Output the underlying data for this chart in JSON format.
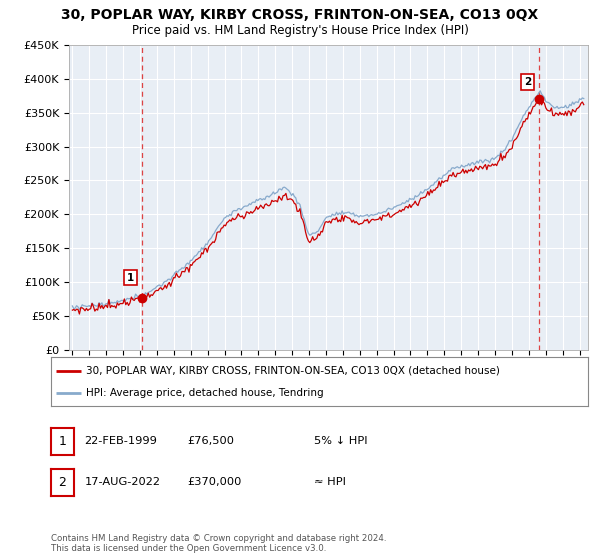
{
  "title": "30, POPLAR WAY, KIRBY CROSS, FRINTON-ON-SEA, CO13 0QX",
  "subtitle": "Price paid vs. HM Land Registry's House Price Index (HPI)",
  "ylabel_ticks": [
    "£0",
    "£50K",
    "£100K",
    "£150K",
    "£200K",
    "£250K",
    "£300K",
    "£350K",
    "£400K",
    "£450K"
  ],
  "ylim": [
    0,
    450000
  ],
  "xlim_start": 1995.0,
  "xlim_end": 2025.5,
  "legend_line1": "30, POPLAR WAY, KIRBY CROSS, FRINTON-ON-SEA, CO13 0QX (detached house)",
  "legend_line2": "HPI: Average price, detached house, Tendring",
  "table_row1_num": "1",
  "table_row1_date": "22-FEB-1999",
  "table_row1_price": "£76,500",
  "table_row1_hpi": "5% ↓ HPI",
  "table_row2_num": "2",
  "table_row2_date": "17-AUG-2022",
  "table_row2_price": "£370,000",
  "table_row2_hpi": "≈ HPI",
  "footnote": "Contains HM Land Registry data © Crown copyright and database right 2024.\nThis data is licensed under the Open Government Licence v3.0.",
  "line_color_red": "#cc0000",
  "line_color_blue": "#88aacc",
  "vline_color": "#dd4444",
  "marker1_x": 1999.13,
  "marker1_y": 76500,
  "marker2_x": 2022.62,
  "marker2_y": 370000,
  "background_color": "#ffffff",
  "plot_bg_color": "#e8eef5",
  "grid_color": "#ffffff"
}
